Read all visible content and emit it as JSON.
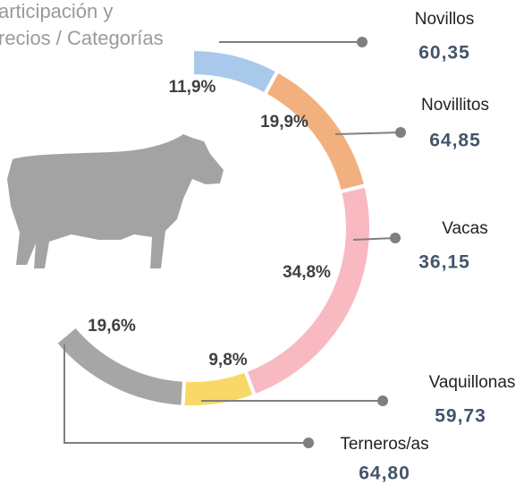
{
  "chart_data": {
    "type": "donut",
    "title": [
      "articipación y",
      "recios / Categorías"
    ],
    "categories": [
      "Novillos",
      "Novillitos",
      "Vacas",
      "Vaquillonas",
      "Terneros/as"
    ],
    "values": [
      11.9,
      19.9,
      34.8,
      9.8,
      19.6
    ],
    "value_labels": [
      "11,9%",
      "19,9%",
      "34,8%",
      "9,8%",
      "19,6%"
    ],
    "price_labels": [
      "60,35",
      "64,85",
      "36,15",
      "59,73",
      "64,80"
    ],
    "colors": [
      "#a9c9ea",
      "#f3b07f",
      "#f8b9c1",
      "#f9d867",
      "#a6a6a6"
    ]
  }
}
